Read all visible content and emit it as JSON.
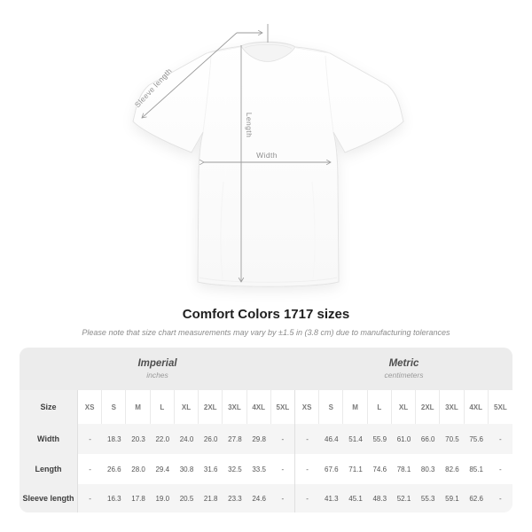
{
  "diagram": {
    "labels": {
      "sleeve_length": "Sleeve length",
      "length": "Length",
      "width": "Width"
    },
    "annotation_color": "#9b9b9b",
    "shirt_color": "#ffffff"
  },
  "title": "Comfort Colors 1717 sizes",
  "note": "Please note that size chart measurements may vary by ±1.5 in (3.8 cm) due to manufacturing tolerances",
  "table": {
    "sections": [
      {
        "label": "Imperial",
        "sublabel": "inches"
      },
      {
        "label": "Metric",
        "sublabel": "centimeters"
      }
    ],
    "size_header": "Size",
    "sizes": [
      "XS",
      "S",
      "M",
      "L",
      "XL",
      "2XL",
      "3XL",
      "4XL",
      "5XL"
    ],
    "rows": [
      {
        "label": "Width",
        "imperial": [
          "-",
          "18.3",
          "20.3",
          "22.0",
          "24.0",
          "26.0",
          "27.8",
          "29.8",
          "-"
        ],
        "metric": [
          "-",
          "46.4",
          "51.4",
          "55.9",
          "61.0",
          "66.0",
          "70.5",
          "75.6",
          "-"
        ]
      },
      {
        "label": "Length",
        "imperial": [
          "-",
          "26.6",
          "28.0",
          "29.4",
          "30.8",
          "31.6",
          "32.5",
          "33.5",
          "-"
        ],
        "metric": [
          "-",
          "67.6",
          "71.1",
          "74.6",
          "78.1",
          "80.3",
          "82.6",
          "85.1",
          "-"
        ]
      },
      {
        "label": "Sleeve length",
        "imperial": [
          "-",
          "16.3",
          "17.8",
          "19.0",
          "20.5",
          "21.8",
          "23.3",
          "24.6",
          "-"
        ],
        "metric": [
          "-",
          "41.3",
          "45.1",
          "48.3",
          "52.1",
          "55.3",
          "59.1",
          "62.6",
          "-"
        ]
      }
    ]
  }
}
